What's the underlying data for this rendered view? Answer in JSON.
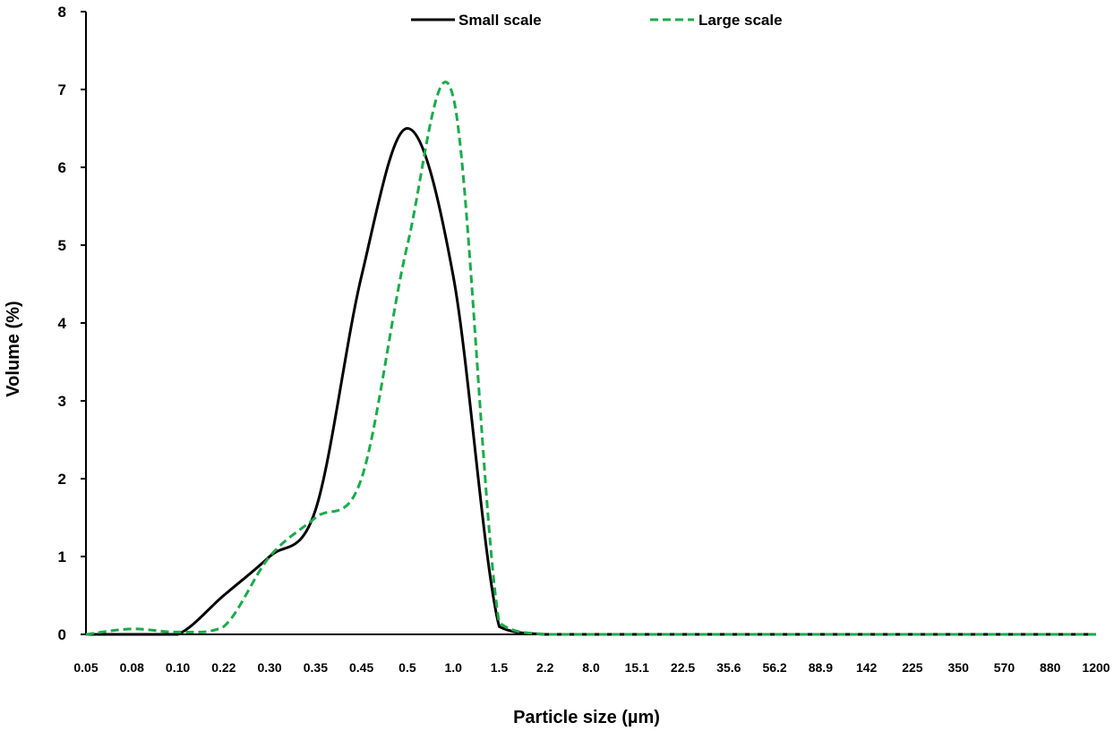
{
  "chart_data": {
    "type": "line",
    "xlabel": "Particle size (µm)",
    "ylabel": "Volume (%)",
    "ylim": [
      0,
      8
    ],
    "yticks": [
      0,
      1,
      2,
      3,
      4,
      5,
      6,
      7,
      8
    ],
    "x_scale": "categorical",
    "categories": [
      "0.05",
      "0.08",
      "0.10",
      "0.22",
      "0.30",
      "0.35",
      "0.45",
      "0.5",
      "1.0",
      "1.5",
      "2.2",
      "8.0",
      "15.1",
      "22.5",
      "35.6",
      "56.2",
      "88.9",
      "142",
      "225",
      "350",
      "570",
      "880",
      "1200"
    ],
    "grid": false,
    "legend_position": "top",
    "series": [
      {
        "name": "Small scale",
        "color": "#000000",
        "dash": "solid",
        "values": [
          0,
          0,
          0,
          0.5,
          1.0,
          1.6,
          4.6,
          6.5,
          4.6,
          0.1,
          0,
          0,
          0,
          0,
          0,
          0,
          0,
          0,
          0,
          0,
          0,
          0,
          0
        ]
      },
      {
        "name": "Large scale",
        "color": "#1aab4b",
        "dash": "dashed",
        "values": [
          0,
          0.07,
          0.03,
          0.1,
          1.0,
          1.5,
          2.0,
          5.0,
          6.9,
          0.15,
          0,
          0,
          0,
          0,
          0,
          0,
          0,
          0,
          0,
          0,
          0,
          0,
          0
        ]
      }
    ]
  }
}
